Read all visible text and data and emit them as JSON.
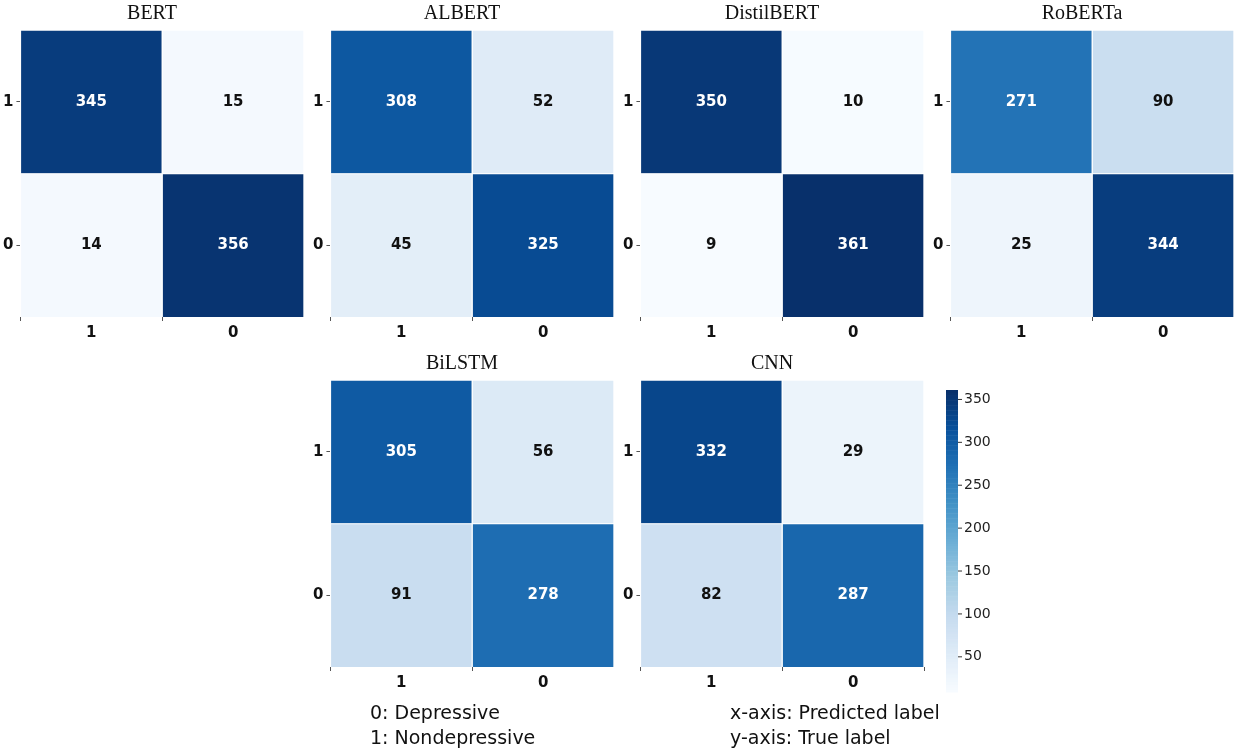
{
  "chart_data": [
    {
      "type": "heatmap",
      "title": "BERT",
      "categories": [
        "1",
        "0"
      ],
      "y_categories": [
        "1",
        "0"
      ],
      "cells": [
        [
          345,
          15
        ],
        [
          14,
          356
        ]
      ],
      "data_labels": true
    },
    {
      "type": "heatmap",
      "title": "ALBERT",
      "categories": [
        "1",
        "0"
      ],
      "y_categories": [
        "1",
        "0"
      ],
      "cells": [
        [
          308,
          52
        ],
        [
          45,
          325
        ]
      ],
      "data_labels": true
    },
    {
      "type": "heatmap",
      "title": "DistilBERT",
      "categories": [
        "1",
        "0"
      ],
      "y_categories": [
        "1",
        "0"
      ],
      "cells": [
        [
          350,
          10
        ],
        [
          9,
          361
        ]
      ],
      "data_labels": true
    },
    {
      "type": "heatmap",
      "title": "RoBERTa",
      "categories": [
        "1",
        "0"
      ],
      "y_categories": [
        "1",
        "0"
      ],
      "cells": [
        [
          271,
          90
        ],
        [
          25,
          344
        ]
      ],
      "data_labels": true
    },
    {
      "type": "heatmap",
      "title": "BiLSTM",
      "categories": [
        "1",
        "0"
      ],
      "y_categories": [
        "1",
        "0"
      ],
      "cells": [
        [
          305,
          56
        ],
        [
          91,
          278
        ]
      ],
      "data_labels": true
    },
    {
      "type": "heatmap",
      "title": "CNN",
      "categories": [
        "1",
        "0"
      ],
      "y_categories": [
        "1",
        "0"
      ],
      "cells": [
        [
          332,
          29
        ],
        [
          82,
          287
        ]
      ],
      "data_labels": true,
      "clim": [
        9,
        361
      ],
      "cticks": [
        50,
        100,
        150,
        200,
        250,
        300,
        350
      ],
      "annotations": [
        "0: Depressive",
        "1: Nondepressive",
        "x-axis: Predicted label",
        "y-axis: True label"
      ]
    }
  ]
}
